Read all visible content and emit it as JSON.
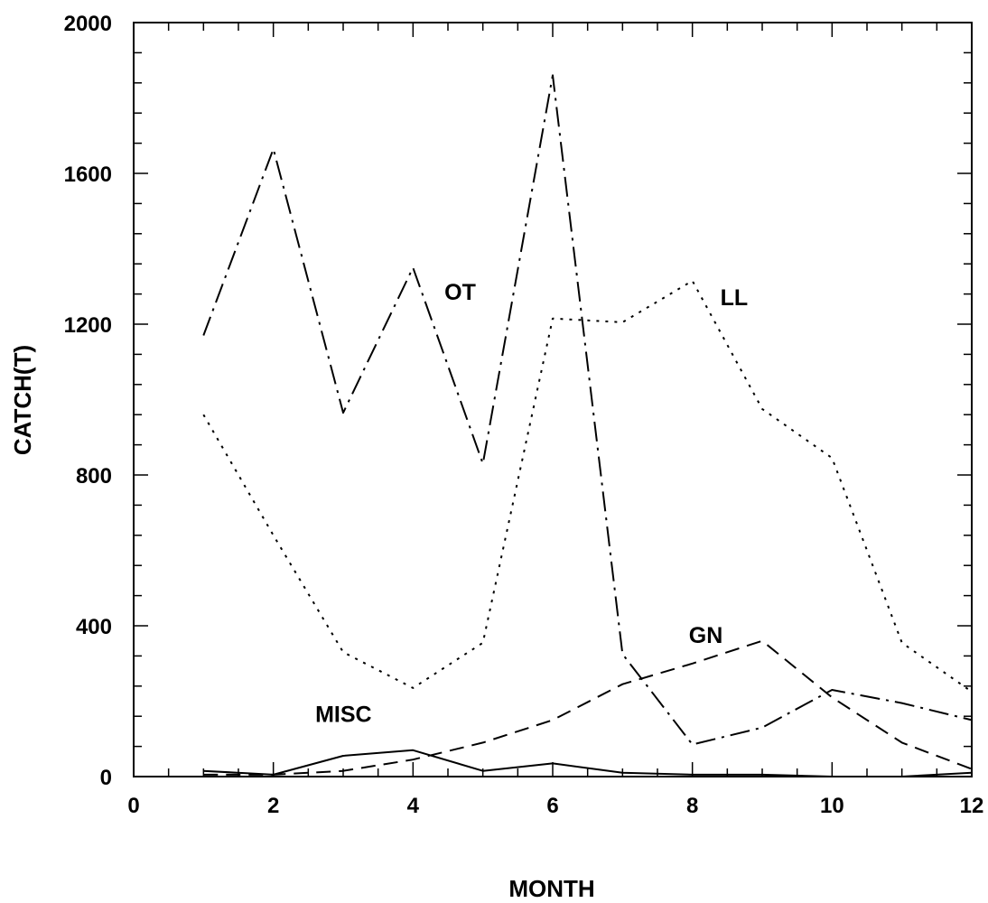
{
  "chart_data": {
    "type": "line",
    "title": "",
    "xlabel": "MONTH",
    "ylabel": "CATCH(T)",
    "xlim": [
      0,
      12
    ],
    "ylim": [
      0,
      2000
    ],
    "x_ticks": [
      0,
      2,
      4,
      6,
      8,
      10,
      12
    ],
    "y_ticks": [
      0,
      400,
      800,
      1200,
      1600,
      2000
    ],
    "grid": false,
    "legend": "none",
    "x": [
      1,
      2,
      3,
      4,
      5,
      6,
      7,
      8,
      9,
      10,
      11,
      12
    ],
    "series": [
      {
        "name": "OT",
        "style": "longdash",
        "color": "#000000",
        "values": [
          1170,
          1665,
          965,
          1350,
          830,
          1860,
          325,
          85,
          130,
          230,
          195,
          150
        ]
      },
      {
        "name": "LL",
        "style": "dotted",
        "color": "#000000",
        "values": [
          960,
          640,
          330,
          235,
          355,
          1215,
          1205,
          1315,
          975,
          845,
          355,
          225
        ]
      },
      {
        "name": "GN",
        "style": "dashed",
        "color": "#000000",
        "values": [
          5,
          5,
          15,
          45,
          90,
          150,
          245,
          300,
          360,
          210,
          90,
          20
        ]
      },
      {
        "name": "MISC",
        "style": "solid",
        "color": "#000000",
        "values": [
          15,
          5,
          55,
          70,
          15,
          35,
          10,
          5,
          5,
          0,
          0,
          10
        ]
      }
    ]
  }
}
